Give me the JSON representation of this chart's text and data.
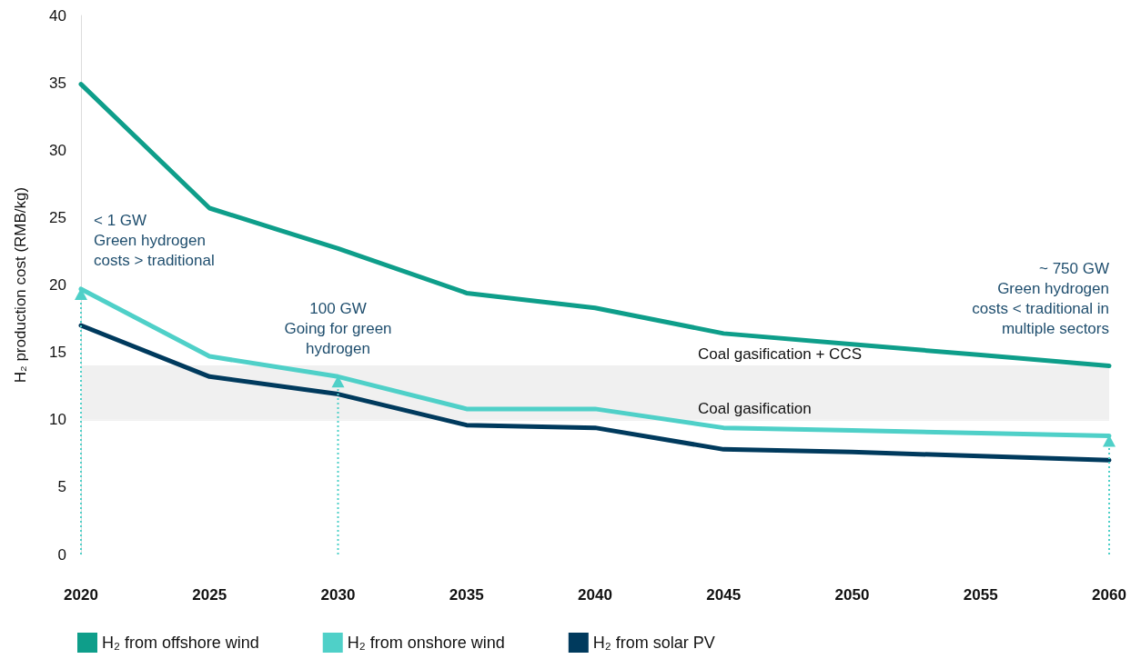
{
  "chart_data": {
    "type": "line",
    "ylabel": "H₂ production cost (RMB/kg)",
    "x": [
      2020,
      2025,
      2030,
      2035,
      2040,
      2045,
      2050,
      2055,
      2060
    ],
    "xlim": [
      2020,
      2060
    ],
    "xticks": [
      2020,
      2025,
      2030,
      2035,
      2040,
      2045,
      2050,
      2055,
      2060
    ],
    "ylim": [
      0,
      40
    ],
    "yticks": [
      0,
      5,
      10,
      15,
      20,
      25,
      30,
      35,
      40
    ],
    "series": [
      {
        "name": "H₂ from offshore wind",
        "color": "#0e9e8a",
        "values": [
          34.9,
          25.7,
          22.7,
          19.4,
          18.3,
          16.4,
          15.6,
          14.8,
          14.0
        ]
      },
      {
        "name": "H₂ from onshore wind",
        "color": "#4fd0c8",
        "values": [
          19.7,
          14.7,
          13.2,
          10.8,
          10.8,
          9.4,
          9.2,
          9.0,
          8.8
        ]
      },
      {
        "name": "H₂ from solar PV",
        "color": "#003a5d",
        "values": [
          17.0,
          13.2,
          11.9,
          9.6,
          9.4,
          7.8,
          7.6,
          7.3,
          7.0
        ]
      }
    ],
    "bands": [
      {
        "axis": "y",
        "from": 10,
        "to": 14,
        "color": "#f0f0f0"
      }
    ],
    "ref_lines": [
      {
        "axis": "y",
        "value": 14,
        "label": "Coal gasification + CCS",
        "color": "#f0f0f0"
      },
      {
        "axis": "y",
        "value": 10,
        "label": "Coal gasification",
        "color": "#f0f0f0"
      }
    ],
    "annotations": [
      {
        "text": "< 1 GW\nGreen hydrogen\ncosts > traditional",
        "x": 2020,
        "y": 19.7
      },
      {
        "text": "100 GW\nGoing for green\nhydrogen",
        "x": 2030,
        "y": 13.2
      },
      "~ 750 GW\nGreen hydrogen\ncosts < traditional in\nmultiple sectors"
    ],
    "marker": "none",
    "line_style": "solid",
    "grid": false,
    "legend": "bottom left"
  }
}
